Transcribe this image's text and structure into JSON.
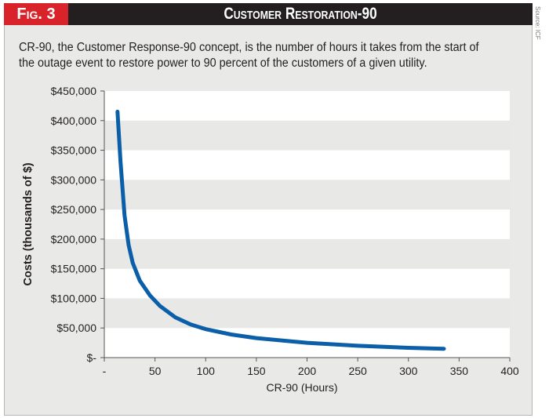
{
  "header": {
    "fig_label": "Fig. 3",
    "title": "Customer Restoration-90",
    "source": "Source: ICF"
  },
  "description": "CR-90, the Customer Response-90 concept, is the number of hours it takes from the start of the outage event to restore power to 90 percent of the customers of a given utility.",
  "colors": {
    "line": "#0b5ea8",
    "header": "#231f20",
    "accent": "#d8232a",
    "band": "#e8e8e6"
  },
  "chart_data": {
    "type": "line",
    "title": "Customer Restoration-90",
    "xlabel": "CR-90 (Hours)",
    "ylabel": "Costs (thousands of $)",
    "xlim": [
      0,
      400
    ],
    "ylim": [
      0,
      450000
    ],
    "x_ticks": [
      0,
      50,
      100,
      150,
      200,
      250,
      300,
      350,
      400
    ],
    "x_tick_labels": [
      "-",
      "50",
      "100",
      "150",
      "200",
      "250",
      "300",
      "350",
      "400"
    ],
    "y_ticks": [
      0,
      50000,
      100000,
      150000,
      200000,
      250000,
      300000,
      350000,
      400000,
      450000
    ],
    "y_tick_labels": [
      "$-",
      "$50,000",
      "$100,000",
      "$150,000",
      "$200,000",
      "$250,000",
      "$300,000",
      "$350,000",
      "$400,000",
      "$450,000"
    ],
    "grid": "alternating horizontal bands",
    "series": [
      {
        "name": "Cost",
        "x": [
          13,
          16,
          20,
          24,
          28,
          35,
          45,
          55,
          70,
          85,
          100,
          125,
          150,
          200,
          250,
          300,
          335
        ],
        "y": [
          415000,
          330000,
          240000,
          190000,
          160000,
          130000,
          105000,
          87000,
          68000,
          56000,
          48000,
          39000,
          33000,
          25000,
          20000,
          16500,
          15000
        ]
      }
    ]
  }
}
